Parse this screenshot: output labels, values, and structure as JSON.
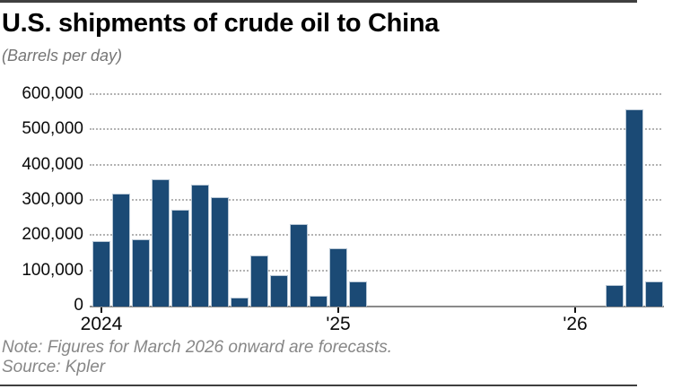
{
  "header": {
    "title": "U.S. shipments of crude oil to China",
    "subtitle": "(Barrels per day)"
  },
  "footer": {
    "note": "Note: Figures for March 2026 onward are forecasts.",
    "source": "Source: Kpler"
  },
  "colors": {
    "bar": "#1b4a75",
    "bar_edge": "#b9c8d6",
    "gridline": "#b3b3b3",
    "axis_line": "#8a8a8a",
    "rule": "#3f3f3f",
    "muted_text": "#878787"
  },
  "chart_data": {
    "type": "bar",
    "title": "U.S. shipments of crude oil to China",
    "ylabel": "Barrels per day",
    "ylim": [
      0,
      600000
    ],
    "grid": "horizontal-dotted",
    "legend": "none",
    "y_ticks": [
      {
        "value": 0,
        "label": "0"
      },
      {
        "value": 100000,
        "label": "100,000"
      },
      {
        "value": 200000,
        "label": "200,000"
      },
      {
        "value": 300000,
        "label": "300,000"
      },
      {
        "value": 400000,
        "label": "400,000"
      },
      {
        "value": 500000,
        "label": "500,000"
      },
      {
        "value": 600000,
        "label": "600,000"
      }
    ],
    "x_ticks": [
      {
        "label": "2024",
        "month_index": 0
      },
      {
        "label": "'25",
        "month_index": 12
      },
      {
        "label": "'26",
        "month_index": 24
      }
    ],
    "bars": [
      {
        "month": "Jan 2024",
        "month_index": 0,
        "value": 185000
      },
      {
        "month": "Feb 2024",
        "month_index": 1,
        "value": 320000
      },
      {
        "month": "Mar 2024",
        "month_index": 2,
        "value": 190000
      },
      {
        "month": "Apr 2024",
        "month_index": 3,
        "value": 360000
      },
      {
        "month": "May 2024",
        "month_index": 4,
        "value": 275000
      },
      {
        "month": "Jun 2024",
        "month_index": 5,
        "value": 345000
      },
      {
        "month": "Jul 2024",
        "month_index": 6,
        "value": 310000
      },
      {
        "month": "Aug 2024",
        "month_index": 7,
        "value": 25000
      },
      {
        "month": "Sep 2024",
        "month_index": 8,
        "value": 145000
      },
      {
        "month": "Oct 2024",
        "month_index": 9,
        "value": 90000
      },
      {
        "month": "Nov 2024",
        "month_index": 10,
        "value": 235000
      },
      {
        "month": "Dec 2024",
        "month_index": 11,
        "value": 30000
      },
      {
        "month": "Jan 2025",
        "month_index": 12,
        "value": 165000
      },
      {
        "month": "Feb 2025",
        "month_index": 13,
        "value": 70000
      },
      {
        "month": "Mar 2026",
        "month_index": 26,
        "value": 60000,
        "forecast": true
      },
      {
        "month": "Apr 2026",
        "month_index": 27,
        "value": 560000,
        "forecast": true
      },
      {
        "month": "May 2026",
        "month_index": 28,
        "value": 70000,
        "forecast": true
      }
    ]
  }
}
